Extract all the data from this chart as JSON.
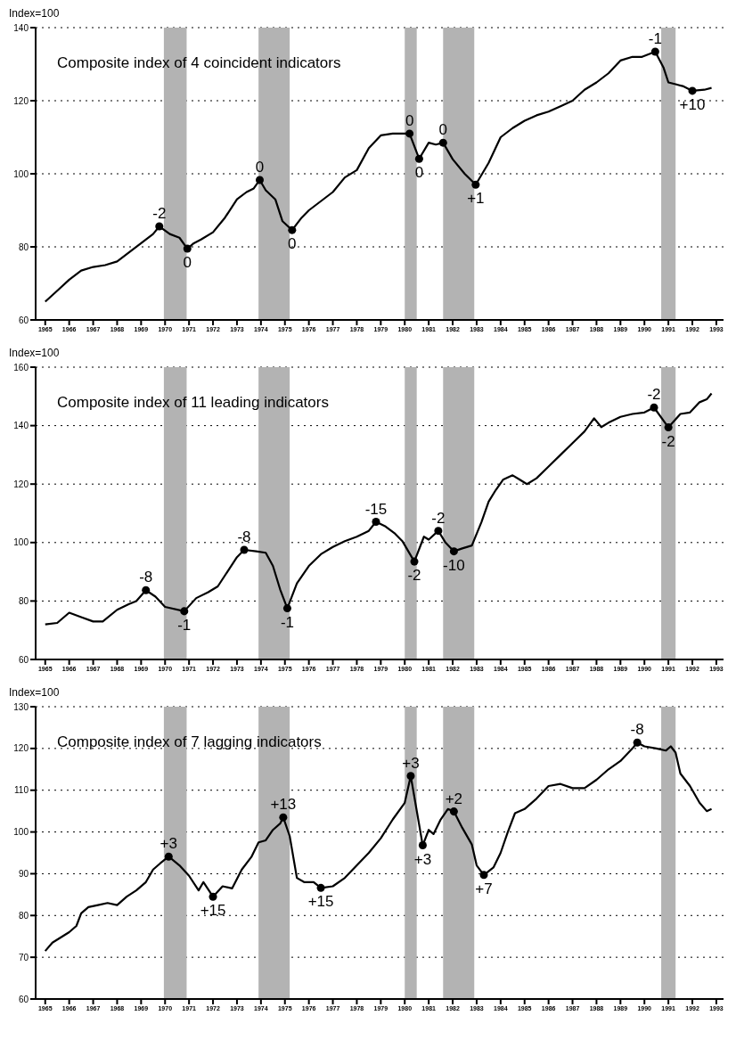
{
  "chart_data": [
    {
      "type": "line",
      "title": "Composite index of 4 coincident indicators",
      "ylabel": "Index=100",
      "xlim": [
        1964.6,
        1993.3
      ],
      "xticks": [
        1965,
        1966,
        1967,
        1968,
        1969,
        1970,
        1971,
        1972,
        1973,
        1974,
        1975,
        1976,
        1977,
        1978,
        1979,
        1980,
        1981,
        1982,
        1983,
        1984,
        1985,
        1986,
        1987,
        1988,
        1989,
        1990,
        1991,
        1992,
        1993
      ],
      "ylim": [
        60,
        140
      ],
      "yticks": [
        60,
        80,
        100,
        120,
        140
      ],
      "grid": "y",
      "bands": [
        {
          "axis": "x",
          "from": 1969.95,
          "to": 1970.9,
          "color": "#b3b3b3"
        },
        {
          "axis": "x",
          "from": 1973.9,
          "to": 1975.2,
          "color": "#b3b3b3"
        },
        {
          "axis": "x",
          "from": 1980.0,
          "to": 1980.5,
          "color": "#b3b3b3"
        },
        {
          "axis": "x",
          "from": 1981.6,
          "to": 1982.9,
          "color": "#b3b3b3"
        },
        {
          "axis": "x",
          "from": 1990.7,
          "to": 1991.3,
          "color": "#b3b3b3"
        }
      ],
      "series": [
        {
          "color": "#000000",
          "marker": "none",
          "x": [
            1965.0,
            1965.5,
            1966.0,
            1966.5,
            1967.0,
            1967.5,
            1968.0,
            1968.5,
            1969.0,
            1969.5,
            1969.76,
            1970.2,
            1970.6,
            1970.93,
            1971.2,
            1971.5,
            1972.0,
            1972.5,
            1973.0,
            1973.4,
            1973.7,
            1973.95,
            1974.2,
            1974.6,
            1974.9,
            1975.3,
            1975.7,
            1976.0,
            1976.5,
            1977.0,
            1977.5,
            1978.0,
            1978.5,
            1979.0,
            1979.5,
            1979.9,
            1980.2,
            1980.6,
            1981.0,
            1981.3,
            1981.6,
            1982.0,
            1982.5,
            1982.96,
            1983.5,
            1984.0,
            1984.5,
            1985.0,
            1985.5,
            1986.0,
            1986.5,
            1987.0,
            1987.5,
            1988.0,
            1988.5,
            1989.0,
            1989.5,
            1989.9,
            1990.45,
            1990.8,
            1991.0,
            1991.3,
            1991.6,
            1992.0,
            1992.5,
            1992.8
          ],
          "values": [
            65,
            68,
            71,
            73.5,
            74.5,
            75,
            76,
            78.5,
            81,
            83.5,
            85.6,
            83.5,
            82.5,
            79.5,
            81,
            82,
            84,
            88,
            93,
            95,
            96,
            98.3,
            95.5,
            93,
            87,
            84.6,
            88,
            90,
            92.5,
            95,
            99,
            101,
            107,
            110.5,
            111,
            111,
            111,
            104.1,
            108.5,
            108,
            108.5,
            104,
            100,
            97,
            103,
            110,
            112.5,
            114.5,
            116,
            117,
            118.5,
            120,
            123,
            125,
            127.5,
            131,
            132,
            132,
            133.4,
            129,
            125,
            124.5,
            124,
            122.7,
            123,
            123.5
          ]
        },
        {
          "type": "scatter",
          "color": "#000000",
          "marker": "circle",
          "x": [
            1969.76,
            1970.93,
            1973.95,
            1975.3,
            1980.2,
            1980.6,
            1981.6,
            1982.96,
            1990.45,
            1992.0
          ],
          "values": [
            85.6,
            79.5,
            98.3,
            84.6,
            111,
            104.1,
            108.5,
            97,
            133.4,
            122.7
          ]
        }
      ],
      "annotations": [
        {
          "text": "-2",
          "x": 1969.76,
          "y": 85.6
        },
        {
          "text": "0",
          "x": 1970.93,
          "y": 79.5
        },
        {
          "text": "0",
          "x": 1973.95,
          "y": 98.3
        },
        {
          "text": "0",
          "x": 1975.3,
          "y": 84.6
        },
        {
          "text": "0",
          "x": 1980.2,
          "y": 111
        },
        {
          "text": "0",
          "x": 1980.6,
          "y": 104.1
        },
        {
          "text": "0",
          "x": 1981.6,
          "y": 108.5
        },
        {
          "text": "+1",
          "x": 1982.96,
          "y": 97
        },
        {
          "text": "-1",
          "x": 1990.45,
          "y": 133.4
        },
        {
          "text": "+10",
          "x": 1992.0,
          "y": 122.7
        }
      ]
    },
    {
      "type": "line",
      "title": "Composite index of 11 leading indicators",
      "ylabel": "Index=100",
      "xlim": [
        1964.6,
        1993.3
      ],
      "xticks": [
        1965,
        1966,
        1967,
        1968,
        1969,
        1970,
        1971,
        1972,
        1973,
        1974,
        1975,
        1976,
        1977,
        1978,
        1979,
        1980,
        1981,
        1982,
        1983,
        1984,
        1985,
        1986,
        1987,
        1988,
        1989,
        1990,
        1991,
        1992,
        1993
      ],
      "ylim": [
        60,
        160
      ],
      "yticks": [
        60,
        80,
        100,
        120,
        140,
        160
      ],
      "grid": "y",
      "bands": [
        {
          "axis": "x",
          "from": 1969.95,
          "to": 1970.9,
          "color": "#b3b3b3"
        },
        {
          "axis": "x",
          "from": 1973.9,
          "to": 1975.2,
          "color": "#b3b3b3"
        },
        {
          "axis": "x",
          "from": 1980.0,
          "to": 1980.5,
          "color": "#b3b3b3"
        },
        {
          "axis": "x",
          "from": 1981.6,
          "to": 1982.9,
          "color": "#b3b3b3"
        },
        {
          "axis": "x",
          "from": 1990.7,
          "to": 1991.3,
          "color": "#b3b3b3"
        }
      ],
      "series": [
        {
          "color": "#000000",
          "marker": "none",
          "x": [
            1965.0,
            1965.5,
            1966.0,
            1966.5,
            1967.0,
            1967.4,
            1968.0,
            1968.5,
            1968.8,
            1969.2,
            1969.6,
            1970.0,
            1970.8,
            1971.3,
            1971.8,
            1972.2,
            1972.6,
            1973.0,
            1973.3,
            1973.8,
            1974.2,
            1974.5,
            1974.8,
            1975.1,
            1975.5,
            1976.0,
            1976.5,
            1977.0,
            1977.5,
            1978.0,
            1978.5,
            1978.8,
            1979.2,
            1979.6,
            1979.9,
            1980.4,
            1980.8,
            1981.0,
            1981.4,
            1981.7,
            1982.05,
            1982.4,
            1982.8,
            1983.2,
            1983.5,
            1983.8,
            1984.1,
            1984.5,
            1984.8,
            1985.1,
            1985.5,
            1986.0,
            1986.5,
            1987.0,
            1987.5,
            1987.9,
            1988.2,
            1988.5,
            1989.0,
            1989.5,
            1990.0,
            1990.4,
            1991.0,
            1991.5,
            1991.9,
            1992.3,
            1992.6,
            1992.8
          ],
          "values": [
            72,
            72.5,
            76,
            74.5,
            73,
            73,
            77,
            79,
            80,
            83.7,
            81.5,
            78,
            76.5,
            81,
            83,
            85,
            90,
            95,
            97.5,
            97,
            96.5,
            92,
            84,
            77.5,
            86,
            92,
            96,
            98.5,
            100.5,
            102,
            104,
            107.1,
            105.5,
            103,
            100.5,
            93.5,
            102,
            101,
            104,
            100,
            97,
            98,
            99,
            107,
            114,
            118,
            121.5,
            123,
            121.5,
            120,
            122,
            126,
            130,
            134,
            138,
            142.5,
            139.5,
            141,
            143,
            144,
            144.5,
            146.2,
            139.4,
            144,
            144.5,
            148,
            149,
            151
          ]
        },
        {
          "type": "scatter",
          "color": "#000000",
          "marker": "circle",
          "x": [
            1969.2,
            1970.8,
            1973.3,
            1975.1,
            1978.8,
            1980.4,
            1981.4,
            1982.05,
            1990.4,
            1991.0
          ],
          "values": [
            83.7,
            76.5,
            97.5,
            77.5,
            107.1,
            93.5,
            104,
            97,
            146.2,
            139.4
          ]
        }
      ],
      "annotations": [
        {
          "text": "-8",
          "x": 1969.2,
          "y": 83.7
        },
        {
          "text": "-1",
          "x": 1970.8,
          "y": 76.5
        },
        {
          "text": "-8",
          "x": 1973.3,
          "y": 97.5
        },
        {
          "text": "-1",
          "x": 1975.1,
          "y": 77.5
        },
        {
          "text": "-15",
          "x": 1978.8,
          "y": 107.1
        },
        {
          "text": "-2",
          "x": 1980.4,
          "y": 93.5
        },
        {
          "text": "-2",
          "x": 1981.4,
          "y": 104
        },
        {
          "text": "-10",
          "x": 1982.05,
          "y": 97
        },
        {
          "text": "-2",
          "x": 1990.4,
          "y": 146.2
        },
        {
          "text": "-2",
          "x": 1991.0,
          "y": 139.4
        }
      ]
    },
    {
      "type": "line",
      "title": "Composite index of 7 lagging indicators",
      "ylabel": "Index=100",
      "xlim": [
        1964.6,
        1993.3
      ],
      "xticks": [
        1965,
        1966,
        1967,
        1968,
        1969,
        1970,
        1971,
        1972,
        1973,
        1974,
        1975,
        1976,
        1977,
        1978,
        1979,
        1980,
        1981,
        1982,
        1983,
        1984,
        1985,
        1986,
        1987,
        1988,
        1989,
        1990,
        1991,
        1992,
        1993
      ],
      "ylim": [
        60,
        130
      ],
      "yticks": [
        60,
        70,
        80,
        90,
        100,
        110,
        120,
        130
      ],
      "grid": "y",
      "bands": [
        {
          "axis": "x",
          "from": 1969.95,
          "to": 1970.9,
          "color": "#b3b3b3"
        },
        {
          "axis": "x",
          "from": 1973.9,
          "to": 1975.2,
          "color": "#b3b3b3"
        },
        {
          "axis": "x",
          "from": 1980.0,
          "to": 1980.5,
          "color": "#b3b3b3"
        },
        {
          "axis": "x",
          "from": 1981.6,
          "to": 1982.9,
          "color": "#b3b3b3"
        },
        {
          "axis": "x",
          "from": 1990.7,
          "to": 1991.3,
          "color": "#b3b3b3"
        }
      ],
      "series": [
        {
          "color": "#000000",
          "marker": "none",
          "x": [
            1965.0,
            1965.3,
            1966.0,
            1966.3,
            1966.5,
            1966.8,
            1967.2,
            1967.6,
            1968.0,
            1968.4,
            1968.8,
            1969.2,
            1969.5,
            1969.8,
            1970.15,
            1970.6,
            1971.0,
            1971.4,
            1971.6,
            1972.0,
            1972.4,
            1972.8,
            1973.2,
            1973.6,
            1973.9,
            1974.2,
            1974.5,
            1974.8,
            1974.93,
            1975.2,
            1975.5,
            1975.8,
            1976.2,
            1976.5,
            1977.0,
            1977.5,
            1978.0,
            1978.5,
            1979.0,
            1979.5,
            1980.0,
            1980.25,
            1980.75,
            1981.0,
            1981.2,
            1981.5,
            1981.8,
            1982.05,
            1982.4,
            1982.8,
            1983.0,
            1983.3,
            1983.7,
            1984.0,
            1984.3,
            1984.6,
            1985.0,
            1985.5,
            1986.0,
            1986.5,
            1987.0,
            1987.5,
            1988.0,
            1988.5,
            1989.0,
            1989.5,
            1989.7,
            1990.0,
            1990.5,
            1990.9,
            1991.1,
            1991.3,
            1991.5,
            1991.9,
            1992.3,
            1992.6,
            1992.8
          ],
          "values": [
            71.5,
            73.5,
            76,
            77.5,
            80.5,
            82,
            82.5,
            83,
            82.5,
            84.5,
            86,
            88,
            91,
            92.5,
            94.1,
            92,
            89.5,
            86,
            88,
            84.5,
            87,
            86.5,
            91,
            94,
            97.5,
            98,
            100.5,
            102,
            103.5,
            99,
            89,
            88,
            88,
            86.6,
            87,
            89,
            92,
            95,
            98.5,
            103,
            107,
            113.4,
            96.8,
            100.5,
            99.5,
            103,
            105.5,
            104.9,
            101,
            97,
            92,
            89.7,
            91.5,
            95,
            100,
            104.5,
            105.5,
            108,
            111,
            111.5,
            110.5,
            110.5,
            112.5,
            115,
            117,
            120,
            121.4,
            120.5,
            120,
            119.5,
            120.5,
            119,
            114,
            111,
            107,
            105,
            105.5
          ]
        },
        {
          "type": "scatter",
          "color": "#000000",
          "marker": "circle",
          "x": [
            1970.15,
            1972.0,
            1974.93,
            1976.5,
            1980.25,
            1980.75,
            1982.05,
            1983.3,
            1989.7
          ],
          "values": [
            94.1,
            84.5,
            103.5,
            86.6,
            113.4,
            96.8,
            104.9,
            89.7,
            121.4
          ]
        }
      ],
      "annotations": [
        {
          "text": "+3",
          "x": 1970.15,
          "y": 94.1
        },
        {
          "text": "+15",
          "x": 1972.0,
          "y": 84.5
        },
        {
          "text": "+13",
          "x": 1974.93,
          "y": 103.5
        },
        {
          "text": "+15",
          "x": 1976.5,
          "y": 86.6
        },
        {
          "text": "+3",
          "x": 1980.25,
          "y": 113.4
        },
        {
          "text": "+3",
          "x": 1980.75,
          "y": 96.8
        },
        {
          "text": "+2",
          "x": 1982.05,
          "y": 104.9
        },
        {
          "text": "+7",
          "x": 1983.3,
          "y": 89.7
        },
        {
          "text": "-8",
          "x": 1989.7,
          "y": 121.4
        }
      ]
    }
  ]
}
